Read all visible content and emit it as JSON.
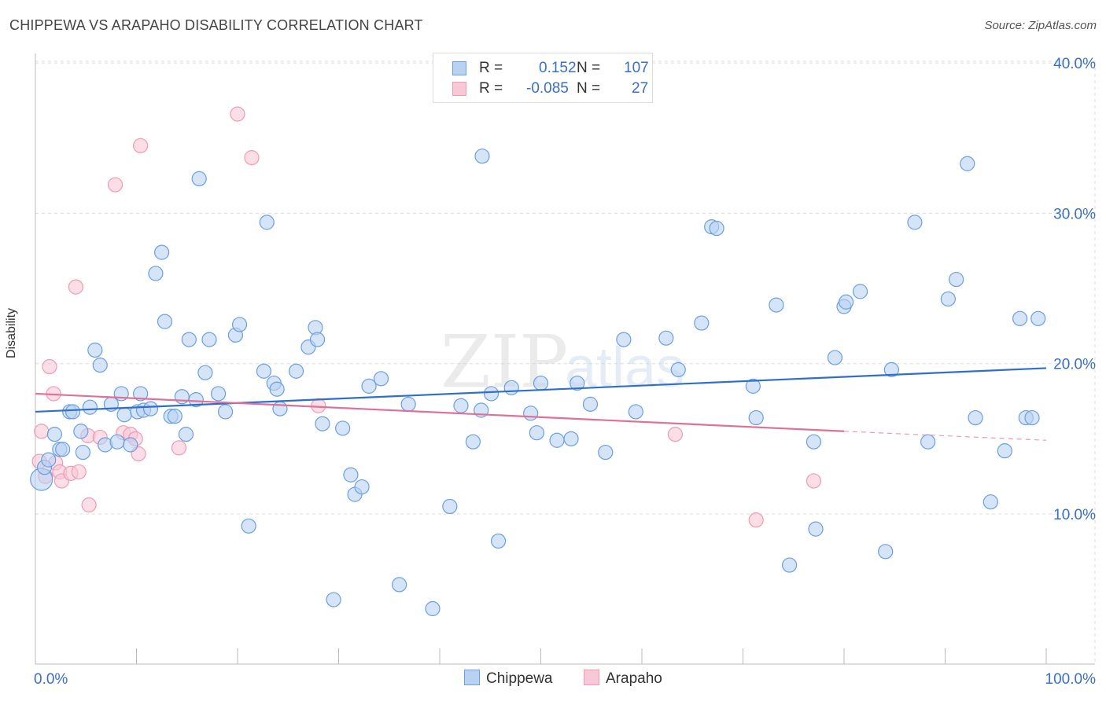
{
  "title": "CHIPPEWA VS ARAPAHO DISABILITY CORRELATION CHART",
  "source": "Source: ZipAtlas.com",
  "watermark": {
    "zip": "ZIP",
    "atlas": "atlas"
  },
  "legend": {
    "r_label": "R =",
    "n_label": "N =",
    "rows": [
      {
        "r": "0.152",
        "n": "107",
        "color": "#9dc0ec"
      },
      {
        "r": "-0.085",
        "n": "27",
        "color": "#f5b5c8"
      }
    ]
  },
  "chart_data": {
    "type": "scatter",
    "title": "CHIPPEWA VS ARAPAHO DISABILITY CORRELATION CHART",
    "xlabel": "",
    "ylabel": "Disability",
    "xlim": [
      0,
      100
    ],
    "ylim": [
      0,
      42
    ],
    "x_tick_labels": [
      "0.0%",
      "100.0%"
    ],
    "y_ticks": [
      10,
      20,
      30,
      40
    ],
    "y_tick_labels": [
      "10.0%",
      "20.0%",
      "30.0%",
      "40.0%"
    ],
    "grid": true,
    "legend_position": "top-center",
    "series": [
      {
        "name": "Chippewa",
        "color": "#6a9fe0",
        "fill": "#b9d2f2",
        "trend": {
          "x0": 0,
          "y0": 16.8,
          "x1": 100,
          "y1": 19.7,
          "color": "#2f6fcb"
        },
        "points": [
          [
            0.6,
            12.3
          ],
          [
            0.9,
            13.1
          ],
          [
            1.3,
            13.6
          ],
          [
            1.9,
            15.3
          ],
          [
            2.4,
            14.3
          ],
          [
            2.7,
            14.3
          ],
          [
            3.4,
            16.8
          ],
          [
            3.7,
            16.8
          ],
          [
            4.5,
            15.5
          ],
          [
            4.7,
            14.1
          ],
          [
            5.4,
            17.1
          ],
          [
            5.9,
            20.9
          ],
          [
            6.4,
            19.9
          ],
          [
            6.9,
            14.6
          ],
          [
            7.5,
            17.3
          ],
          [
            8.1,
            14.8
          ],
          [
            8.5,
            18.0
          ],
          [
            8.8,
            16.6
          ],
          [
            9.4,
            14.6
          ],
          [
            10.1,
            16.8
          ],
          [
            10.4,
            18.0
          ],
          [
            10.7,
            16.9
          ],
          [
            11.4,
            17.0
          ],
          [
            11.9,
            26.0
          ],
          [
            12.5,
            27.4
          ],
          [
            12.8,
            22.8
          ],
          [
            13.4,
            16.5
          ],
          [
            13.8,
            16.5
          ],
          [
            14.5,
            17.8
          ],
          [
            14.9,
            15.3
          ],
          [
            15.2,
            21.6
          ],
          [
            15.9,
            17.6
          ],
          [
            16.2,
            32.3
          ],
          [
            16.8,
            19.4
          ],
          [
            17.2,
            21.6
          ],
          [
            18.1,
            18.0
          ],
          [
            18.8,
            16.8
          ],
          [
            19.8,
            21.9
          ],
          [
            20.2,
            22.6
          ],
          [
            21.1,
            9.2
          ],
          [
            22.6,
            19.5
          ],
          [
            22.9,
            29.4
          ],
          [
            23.6,
            18.7
          ],
          [
            23.9,
            18.3
          ],
          [
            24.2,
            17.0
          ],
          [
            25.8,
            19.5
          ],
          [
            27.0,
            21.1
          ],
          [
            27.7,
            22.4
          ],
          [
            27.9,
            21.6
          ],
          [
            28.4,
            16.0
          ],
          [
            29.5,
            4.3
          ],
          [
            30.4,
            15.7
          ],
          [
            31.2,
            12.6
          ],
          [
            31.6,
            11.3
          ],
          [
            32.3,
            11.8
          ],
          [
            33.0,
            18.5
          ],
          [
            34.2,
            19.0
          ],
          [
            36.0,
            5.3
          ],
          [
            36.9,
            17.3
          ],
          [
            39.3,
            3.7
          ],
          [
            41.0,
            10.5
          ],
          [
            42.1,
            17.2
          ],
          [
            43.3,
            14.8
          ],
          [
            44.1,
            16.9
          ],
          [
            44.2,
            33.8
          ],
          [
            45.1,
            18.0
          ],
          [
            45.8,
            8.2
          ],
          [
            47.1,
            18.4
          ],
          [
            49.0,
            16.7
          ],
          [
            49.6,
            15.4
          ],
          [
            50.0,
            18.7
          ],
          [
            51.6,
            14.9
          ],
          [
            53.0,
            15.0
          ],
          [
            53.6,
            18.7
          ],
          [
            54.9,
            17.3
          ],
          [
            56.4,
            14.1
          ],
          [
            58.2,
            21.6
          ],
          [
            59.4,
            16.8
          ],
          [
            62.4,
            21.7
          ],
          [
            63.6,
            19.6
          ],
          [
            65.9,
            22.7
          ],
          [
            66.9,
            29.1
          ],
          [
            67.4,
            29.0
          ],
          [
            71.0,
            18.5
          ],
          [
            71.3,
            16.4
          ],
          [
            73.3,
            23.9
          ],
          [
            74.6,
            6.6
          ],
          [
            77.0,
            14.8
          ],
          [
            77.2,
            9.0
          ],
          [
            79.1,
            20.4
          ],
          [
            80.0,
            23.8
          ],
          [
            80.2,
            24.1
          ],
          [
            81.6,
            24.8
          ],
          [
            84.1,
            7.5
          ],
          [
            84.7,
            19.6
          ],
          [
            87.0,
            29.4
          ],
          [
            88.3,
            14.8
          ],
          [
            90.3,
            24.3
          ],
          [
            91.1,
            25.6
          ],
          [
            92.2,
            33.3
          ],
          [
            93.0,
            16.4
          ],
          [
            94.5,
            10.8
          ],
          [
            95.9,
            14.2
          ],
          [
            97.4,
            23.0
          ],
          [
            98.0,
            16.4
          ],
          [
            98.6,
            16.4
          ],
          [
            99.2,
            23.0
          ]
        ]
      },
      {
        "name": "Arapaho",
        "color": "#f09ab4",
        "fill": "#f8c8d6",
        "trend": {
          "x0": 0,
          "y0": 18.0,
          "x1": 80,
          "y1": 15.5,
          "color": "#e07096",
          "dash_to_x": 100,
          "dash_to_y": 14.9
        },
        "points": [
          [
            0.6,
            15.5
          ],
          [
            1.4,
            19.8
          ],
          [
            1.8,
            18.0
          ],
          [
            2.0,
            13.4
          ],
          [
            2.4,
            12.8
          ],
          [
            2.6,
            12.2
          ],
          [
            3.5,
            12.7
          ],
          [
            4.0,
            25.1
          ],
          [
            4.3,
            12.8
          ],
          [
            5.2,
            15.2
          ],
          [
            5.3,
            10.6
          ],
          [
            6.4,
            15.1
          ],
          [
            7.9,
            31.9
          ],
          [
            8.7,
            15.4
          ],
          [
            9.4,
            15.3
          ],
          [
            9.9,
            15.0
          ],
          [
            10.2,
            14.0
          ],
          [
            10.4,
            34.5
          ],
          [
            14.2,
            14.4
          ],
          [
            20.0,
            36.6
          ],
          [
            21.4,
            33.7
          ],
          [
            28.0,
            17.2
          ],
          [
            63.3,
            15.3
          ],
          [
            71.3,
            9.6
          ],
          [
            77.0,
            12.2
          ],
          [
            0.4,
            13.5
          ],
          [
            1.0,
            12.5
          ]
        ]
      }
    ]
  },
  "bottom_legend": [
    "Chippewa",
    "Arapaho"
  ]
}
